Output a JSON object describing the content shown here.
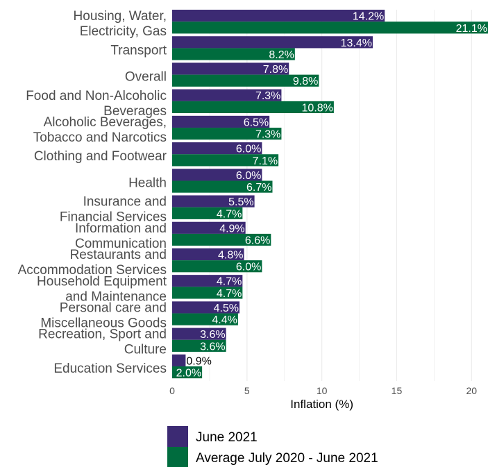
{
  "chart_data": {
    "type": "bar",
    "orientation": "horizontal",
    "categories": [
      [
        "Housing, Water,",
        "Electricity, Gas"
      ],
      [
        "Transport"
      ],
      [
        "Overall"
      ],
      [
        "Food and Non-Alcoholic",
        "Beverages"
      ],
      [
        "Alcoholic Beverages,",
        "Tobacco and Narcotics"
      ],
      [
        "Clothing and Footwear"
      ],
      [
        "Health"
      ],
      [
        "Insurance and",
        "Financial Services"
      ],
      [
        "Information and",
        "Communication"
      ],
      [
        "Restaurants and",
        "Accommodation Services"
      ],
      [
        "Household Equipment",
        "and Maintenance"
      ],
      [
        "Personal care and",
        "Miscellaneous Goods"
      ],
      [
        "Recreation, Sport and",
        "Culture"
      ],
      [
        "Education Services"
      ]
    ],
    "series": [
      {
        "name": "June 2021",
        "color": "#3c2a73",
        "values": [
          14.2,
          13.4,
          7.8,
          7.3,
          6.5,
          6.0,
          6.0,
          5.5,
          4.9,
          4.8,
          4.7,
          4.5,
          3.6,
          0.9
        ],
        "labels": [
          "14.2%",
          "13.4%",
          "7.8%",
          "7.3%",
          "6.5%",
          "6.0%",
          "6.0%",
          "5.5%",
          "4.9%",
          "4.8%",
          "4.7%",
          "4.5%",
          "3.6%",
          "0.9%"
        ]
      },
      {
        "name": "Average July 2020 - June 2021",
        "color": "#006c3e",
        "values": [
          21.1,
          8.2,
          9.8,
          10.8,
          7.3,
          7.1,
          6.7,
          4.7,
          6.6,
          6.0,
          4.7,
          4.4,
          3.6,
          2.0
        ],
        "labels": [
          "21.1%",
          "8.2%",
          "9.8%",
          "10.8%",
          "7.3%",
          "7.1%",
          "6.7%",
          "4.7%",
          "6.6%",
          "6.0%",
          "4.7%",
          "4.4%",
          "3.6%",
          "2.0%"
        ]
      }
    ],
    "xlabel": "Inflation (%)",
    "xlim": [
      0,
      21.1
    ],
    "xticks": [
      0,
      5,
      10,
      15,
      20
    ],
    "xtick_labels": [
      "0",
      "5",
      "10",
      "15",
      "20"
    ],
    "grid": "vertical",
    "legend": "bottom"
  }
}
